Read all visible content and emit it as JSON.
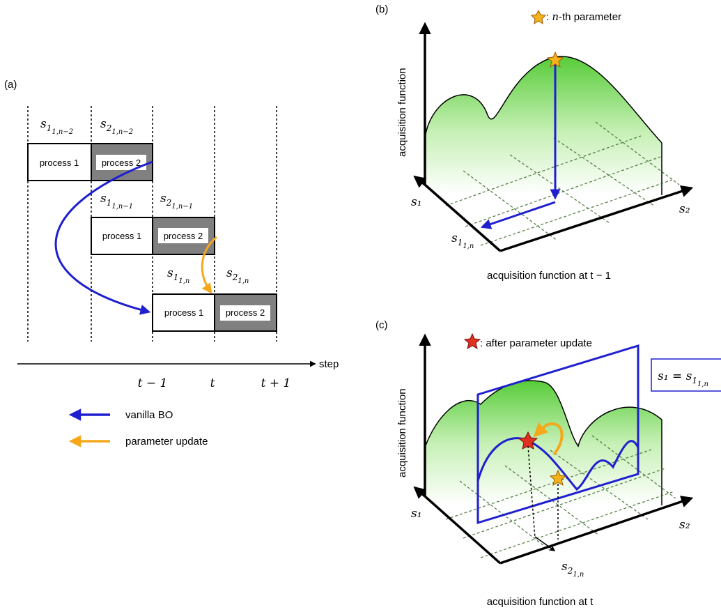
{
  "panel_a": {
    "label": "(a)",
    "s1_n2": {
      "base": "s",
      "sub": "1",
      "subsub": "1,n−2"
    },
    "s2_n2": {
      "base": "s",
      "sub": "2",
      "subsub": "1,n−2"
    },
    "s1_n1": {
      "base": "s",
      "sub": "1",
      "subsub": "1,n−1"
    },
    "s2_n1": {
      "base": "s",
      "sub": "2",
      "subsub": "1,n−1"
    },
    "s1_n": {
      "base": "s",
      "sub": "1",
      "subsub": "1,n"
    },
    "s2_n": {
      "base": "s",
      "sub": "2",
      "subsub": "1,n"
    },
    "process1": "process 1",
    "process2": "process 2",
    "step_label": "step",
    "ticks": [
      "t − 1",
      "t",
      "t + 1"
    ],
    "legend": {
      "vanilla": "vanilla BO",
      "update": "parameter update"
    }
  },
  "panel_b": {
    "label": "(b)",
    "star_legend": ": n-th parameter",
    "y_axis": "acquisition function",
    "s1": "s₁",
    "s2": "s₂",
    "s1n": {
      "base": "s",
      "sub": "1",
      "subsub": "1,n"
    },
    "caption": "acquisition function at t − 1"
  },
  "panel_c": {
    "label": "(c)",
    "star_legend": ": after parameter update",
    "y_axis": "acquisition function",
    "s1": "s₁",
    "s2": "s₂",
    "s2n": {
      "base": "s",
      "sub": "2",
      "subsub": "1,n"
    },
    "plane_label": "s₁ = s",
    "plane_sub": "1",
    "plane_subsub": "1,n",
    "caption": "acquisition function at t"
  },
  "colors": {
    "blue": "#1f1fd0",
    "orange": "#f6a81b",
    "star_orange": "#f4b31b",
    "star_red": "#e03020",
    "gray_box": "#808080",
    "green_top": "#5fcf3e"
  }
}
